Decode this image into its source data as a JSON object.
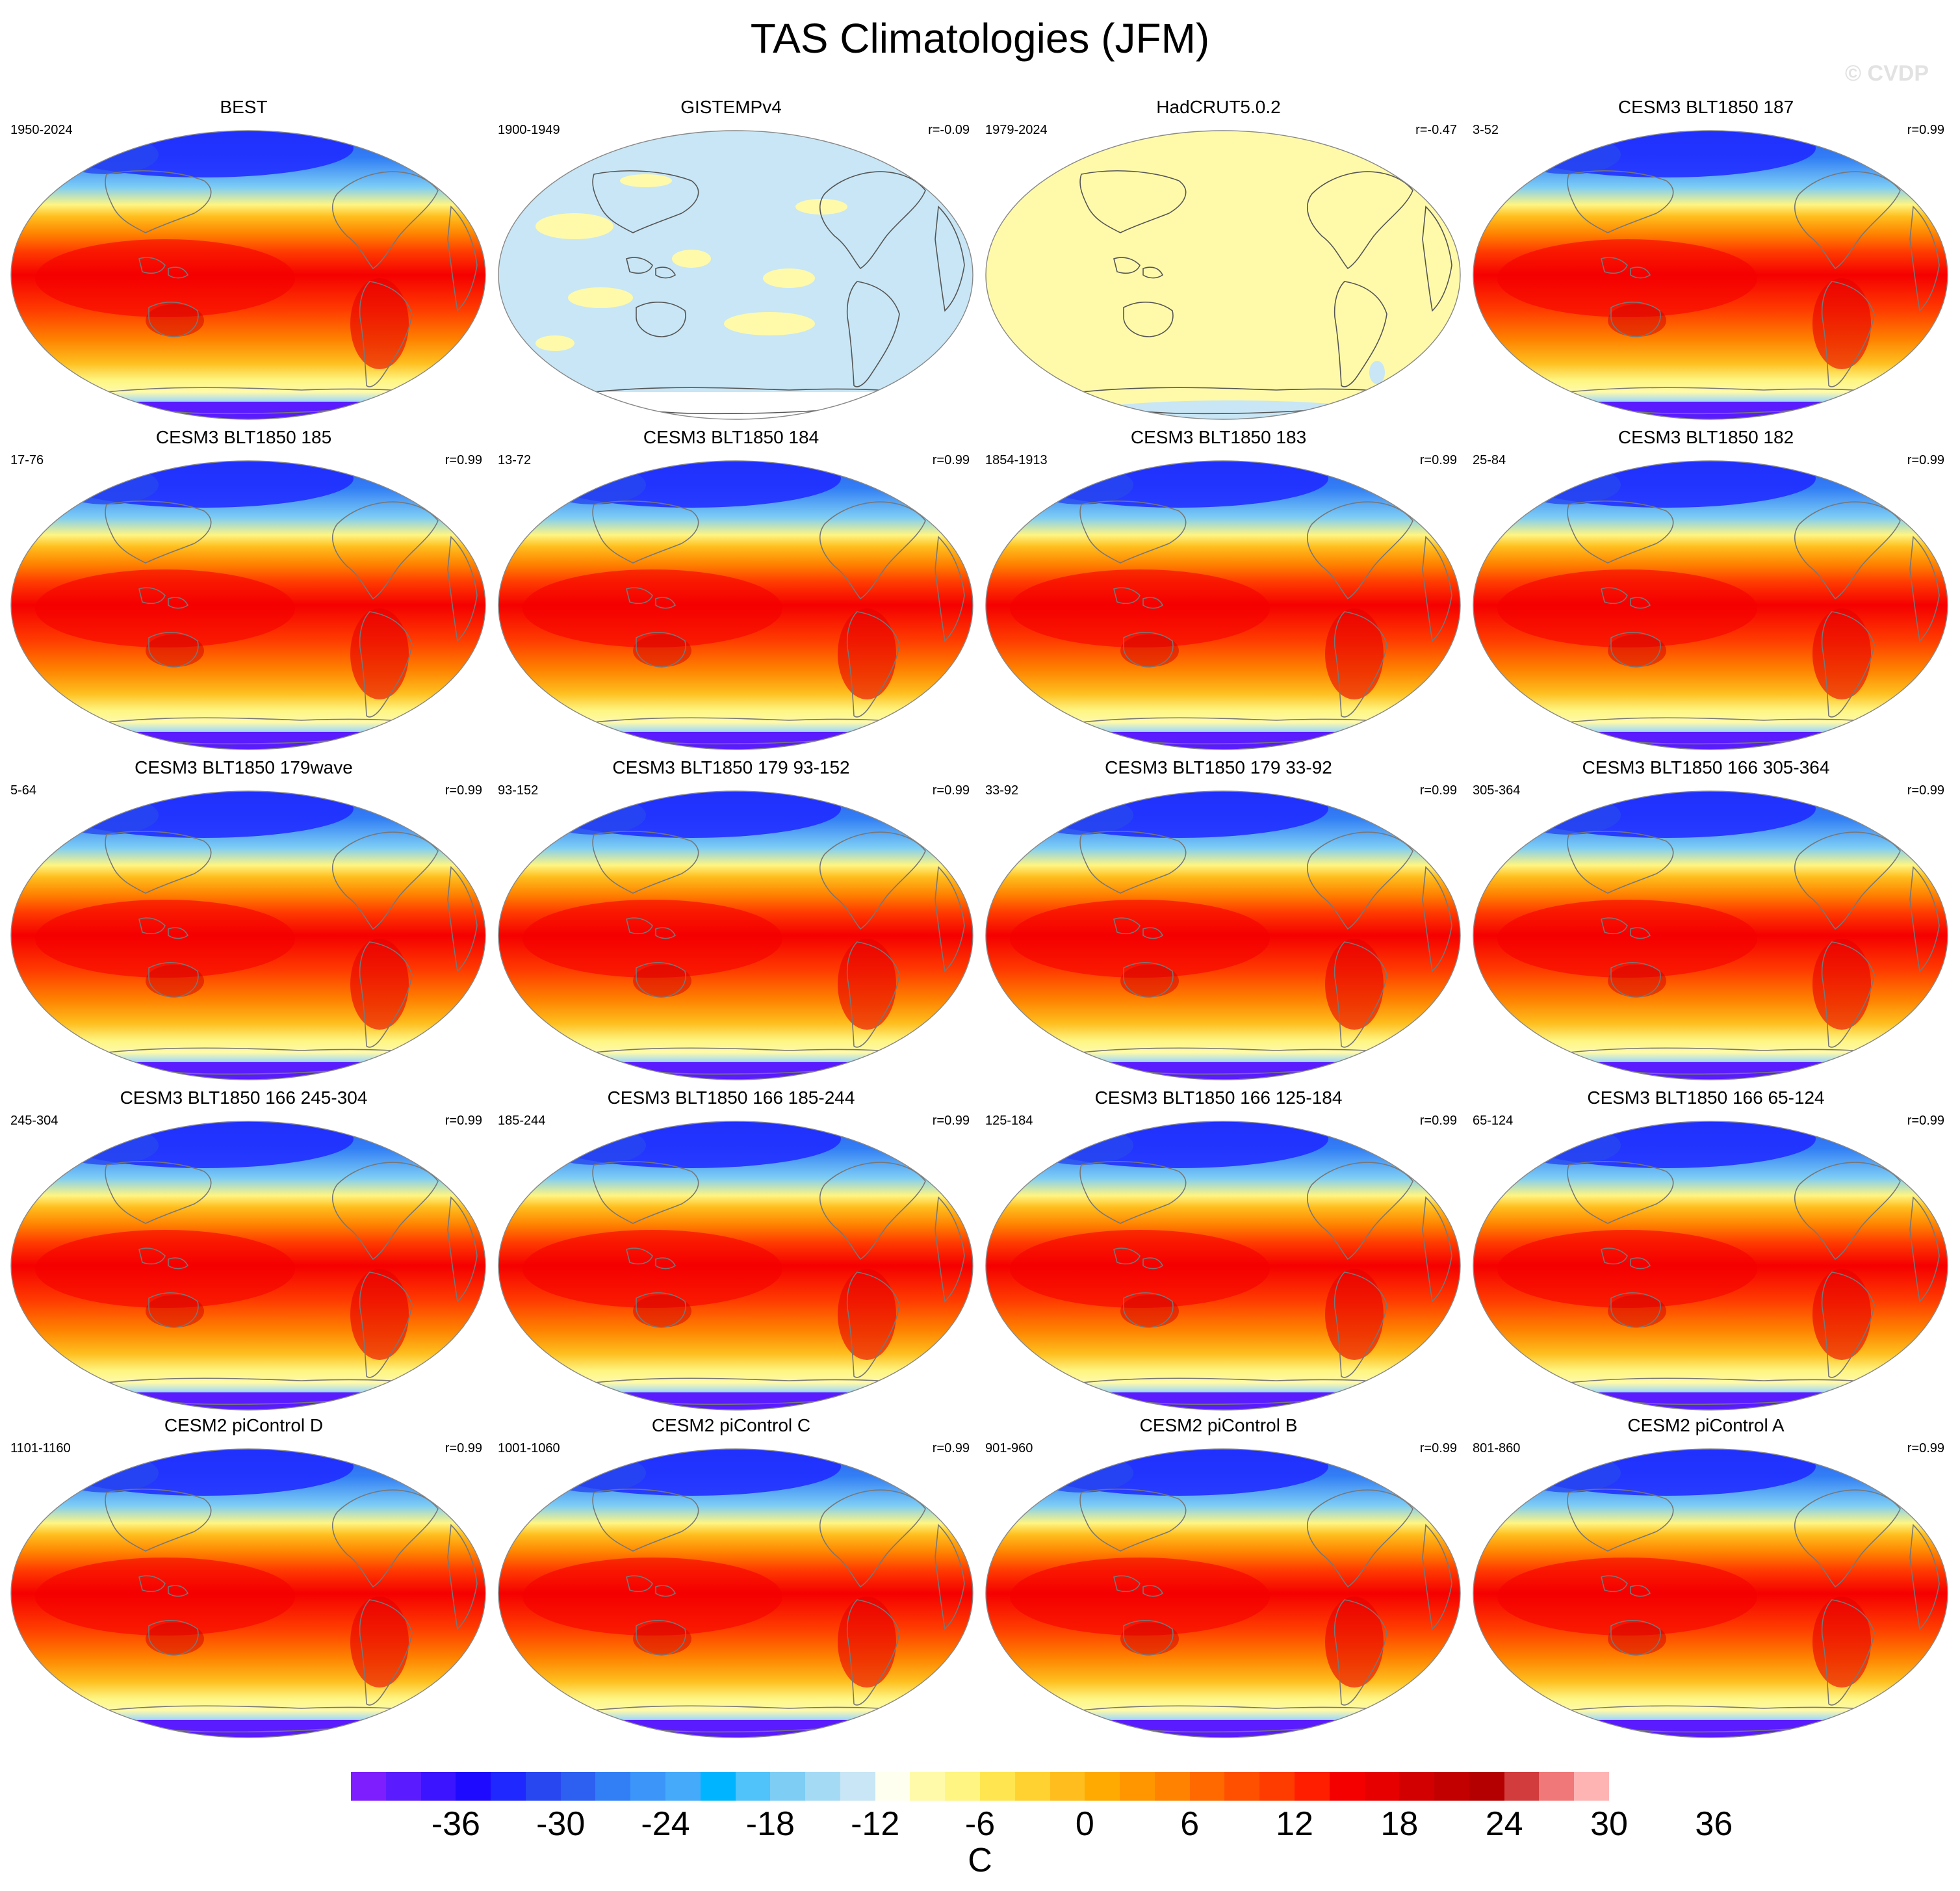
{
  "title": "TAS Climatologies (JFM)",
  "watermark": "© CVDP",
  "panels": [
    {
      "title": "BEST",
      "period": "1950-2024",
      "corr": "",
      "field": "obs"
    },
    {
      "title": "GISTEMPv4",
      "period": "1900-1949",
      "corr": "r=-0.09",
      "field": "gistemp"
    },
    {
      "title": "HadCRUT5.0.2",
      "period": "1979-2024",
      "corr": "r=-0.47",
      "field": "hadcrut"
    },
    {
      "title": "CESM3 BLT1850 187",
      "period": "3-52",
      "corr": "r=0.99",
      "field": "model"
    },
    {
      "title": "CESM3 BLT1850 185",
      "period": "17-76",
      "corr": "r=0.99",
      "field": "model"
    },
    {
      "title": "CESM3 BLT1850 184",
      "period": "13-72",
      "corr": "r=0.99",
      "field": "model"
    },
    {
      "title": "CESM3 BLT1850 183",
      "period": "1854-1913",
      "corr": "r=0.99",
      "field": "model"
    },
    {
      "title": "CESM3 BLT1850 182",
      "period": "25-84",
      "corr": "r=0.99",
      "field": "model"
    },
    {
      "title": "CESM3 BLT1850 179wave",
      "period": "5-64",
      "corr": "r=0.99",
      "field": "model"
    },
    {
      "title": "CESM3 BLT1850 179 93-152",
      "period": "93-152",
      "corr": "r=0.99",
      "field": "model"
    },
    {
      "title": "CESM3 BLT1850 179 33-92",
      "period": "33-92",
      "corr": "r=0.99",
      "field": "model"
    },
    {
      "title": "CESM3 BLT1850 166 305-364",
      "period": "305-364",
      "corr": "r=0.99",
      "field": "model"
    },
    {
      "title": "CESM3 BLT1850 166 245-304",
      "period": "245-304",
      "corr": "r=0.99",
      "field": "model"
    },
    {
      "title": "CESM3 BLT1850 166 185-244",
      "period": "185-244",
      "corr": "r=0.99",
      "field": "model"
    },
    {
      "title": "CESM3 BLT1850 166 125-184",
      "period": "125-184",
      "corr": "r=0.99",
      "field": "model"
    },
    {
      "title": "CESM3 BLT1850 166 65-124",
      "period": "65-124",
      "corr": "r=0.99",
      "field": "model"
    },
    {
      "title": "CESM2 piControl D",
      "period": "1101-1160",
      "corr": "r=0.99",
      "field": "model"
    },
    {
      "title": "CESM2 piControl C",
      "period": "1001-1060",
      "corr": "r=0.99",
      "field": "model"
    },
    {
      "title": "CESM2 piControl B",
      "period": "901-960",
      "corr": "r=0.99",
      "field": "model"
    },
    {
      "title": "CESM2 piControl A",
      "period": "801-860",
      "corr": "r=0.99",
      "field": "model"
    }
  ],
  "colorbar": {
    "units": "C",
    "labels": [
      "-36",
      "-30",
      "-24",
      "-18",
      "-12",
      "-6",
      "0",
      "6",
      "12",
      "18",
      "24",
      "30",
      "36"
    ],
    "colors": [
      "#7e1eff",
      "#5a1cff",
      "#3c14ff",
      "#1e0aff",
      "#1e28ff",
      "#2847f0",
      "#2d5ff0",
      "#327ff5",
      "#3c96fa",
      "#46aafa",
      "#00b4ff",
      "#50c3fa",
      "#7dcdf5",
      "#a5daf5",
      "#c8e6f5",
      "#fffff0",
      "#fffaaa",
      "#fff582",
      "#ffe650",
      "#ffd232",
      "#ffbe1e",
      "#ffaa00",
      "#ff9600",
      "#ff8200",
      "#ff6900",
      "#ff5000",
      "#ff3c00",
      "#ff1e00",
      "#f50000",
      "#e60000",
      "#d20000",
      "#c30000",
      "#b40000",
      "#d23c3c",
      "#f07878",
      "#ffb4b4"
    ]
  }
}
